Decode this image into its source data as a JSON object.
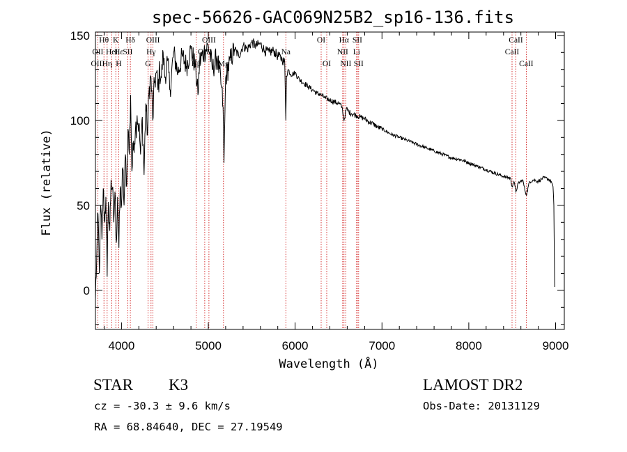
{
  "chart_data": {
    "type": "line",
    "title": "spec-56626-GAC069N25B2_sp16-136.fits",
    "xlabel": "Wavelength (Å)",
    "ylabel": "Flux (relative)",
    "xlim": [
      3700,
      9100
    ],
    "ylim": [
      -23,
      152
    ],
    "xticks": [
      4000,
      5000,
      6000,
      7000,
      8000,
      9000
    ],
    "yticks": [
      0,
      50,
      100,
      150
    ],
    "xtick_labels": [
      "4000",
      "5000",
      "6000",
      "7000",
      "8000",
      "9000"
    ],
    "ytick_labels": [
      "0",
      "50",
      "100",
      "150"
    ],
    "series": [
      {
        "name": "spectrum",
        "x": [
          3700,
          3715,
          3730,
          3745,
          3760,
          3775,
          3790,
          3805,
          3820,
          3835,
          3850,
          3865,
          3880,
          3895,
          3910,
          3925,
          3940,
          3955,
          3970,
          3985,
          4000,
          4015,
          4030,
          4045,
          4060,
          4075,
          4090,
          4105,
          4120,
          4140,
          4160,
          4180,
          4200,
          4220,
          4240,
          4260,
          4280,
          4300,
          4320,
          4340,
          4360,
          4380,
          4400,
          4420,
          4440,
          4460,
          4480,
          4500,
          4530,
          4560,
          4600,
          4650,
          4700,
          4750,
          4800,
          4850,
          4880,
          4900,
          4950,
          5000,
          5050,
          5100,
          5150,
          5170,
          5180,
          5190,
          5200,
          5250,
          5300,
          5350,
          5400,
          5450,
          5500,
          5550,
          5600,
          5650,
          5700,
          5750,
          5800,
          5850,
          5880,
          5893,
          5900,
          5920,
          5950,
          6000,
          6050,
          6100,
          6150,
          6200,
          6250,
          6300,
          6350,
          6400,
          6450,
          6500,
          6540,
          6563,
          6590,
          6620,
          6650,
          6700,
          6750,
          6800,
          6850,
          6900,
          6950,
          7000,
          7100,
          7200,
          7300,
          7400,
          7500,
          7600,
          7700,
          7800,
          7900,
          8000,
          8100,
          8200,
          8300,
          8400,
          8480,
          8498,
          8520,
          8542,
          8570,
          8620,
          8662,
          8700,
          8750,
          8800,
          8850,
          8900,
          8950,
          8970,
          8980,
          8985,
          8990
        ],
        "y": [
          -5,
          20,
          45,
          10,
          50,
          30,
          60,
          40,
          55,
          8,
          52,
          35,
          65,
          60,
          40,
          58,
          28,
          55,
          25,
          60,
          50,
          72,
          50,
          80,
          62,
          95,
          80,
          115,
          70,
          88,
          94,
          103,
          97,
          80,
          102,
          68,
          110,
          92,
          120,
          125,
          100,
          122,
          128,
          118,
          130,
          125,
          140,
          125,
          135,
          118,
          140,
          128,
          138,
          132,
          142,
          132,
          115,
          135,
          140,
          144,
          130,
          138,
          120,
          108,
          75,
          100,
          125,
          135,
          142,
          138,
          144,
          142,
          146,
          144,
          145,
          141,
          140,
          141,
          138,
          136,
          134,
          100,
          126,
          130,
          127,
          128,
          124,
          122,
          120,
          118,
          116,
          115,
          113,
          112,
          111,
          110,
          108,
          100,
          107,
          105,
          104,
          103,
          102,
          101,
          99,
          98,
          96,
          95,
          92,
          90,
          88,
          86,
          84,
          82,
          80,
          78,
          77,
          75,
          73,
          71,
          69,
          67,
          66,
          61,
          64,
          58,
          63,
          65,
          56,
          64,
          65,
          64,
          66,
          66,
          64,
          61,
          50,
          20,
          2
        ]
      }
    ],
    "line_annotations": [
      {
        "label": "Hθ",
        "x": 3798,
        "row": 0
      },
      {
        "label": "OII",
        "x": 3727,
        "row": 1
      },
      {
        "label": "OIII",
        "x": 3727,
        "row": 2
      },
      {
        "label": "K",
        "x": 3934,
        "row": 0
      },
      {
        "label": "Hε",
        "x": 3970,
        "row": 1
      },
      {
        "label": "HeI",
        "x": 3889,
        "row": 1
      },
      {
        "label": "SII",
        "x": 4072,
        "row": 1
      },
      {
        "label": "Hη",
        "x": 3835,
        "row": 2
      },
      {
        "label": "H",
        "x": 3968,
        "row": 2
      },
      {
        "label": "Hδ",
        "x": 4102,
        "row": 0
      },
      {
        "label": "OIII",
        "x": 4363,
        "row": 0
      },
      {
        "label": "Hγ",
        "x": 4340,
        "row": 1
      },
      {
        "label": "G",
        "x": 4305,
        "row": 2
      },
      {
        "label": "OIII",
        "x": 5007,
        "row": 0
      },
      {
        "label": "OIII",
        "x": 4959,
        "row": 1
      },
      {
        "label": "Hβ",
        "x": 4861,
        "row": 2
      },
      {
        "label": "Mg",
        "x": 5175,
        "row": 2
      },
      {
        "label": "Na",
        "x": 5893,
        "row": 1
      },
      {
        "label": "OI",
        "x": 6300,
        "row": 0
      },
      {
        "label": "OI",
        "x": 6364,
        "row": 2
      },
      {
        "label": "Hα",
        "x": 6563,
        "row": 0
      },
      {
        "label": "SII",
        "x": 6716,
        "row": 0
      },
      {
        "label": "NII",
        "x": 6548,
        "row": 1
      },
      {
        "label": "Li",
        "x": 6708,
        "row": 1
      },
      {
        "label": "NII",
        "x": 6583,
        "row": 2
      },
      {
        "label": "SII",
        "x": 6731,
        "row": 2
      },
      {
        "label": "CaII",
        "x": 8542,
        "row": 0
      },
      {
        "label": "CaII",
        "x": 8498,
        "row": 1
      },
      {
        "label": "CaII",
        "x": 8662,
        "row": 2
      }
    ],
    "line_positions": [
      3727,
      3798,
      3835,
      3889,
      3934,
      3968,
      4072,
      4102,
      4305,
      4340,
      4363,
      4861,
      4959,
      5007,
      5175,
      5893,
      6300,
      6364,
      6548,
      6563,
      6583,
      6708,
      6716,
      6731,
      8498,
      8542,
      8662
    ],
    "line_color": "#000000",
    "marker_line_color": "#cc0000"
  },
  "info": {
    "object_class": "STAR",
    "subclass": "K3",
    "survey": "LAMOST DR2",
    "redshift": "cz = -30.3 ± 9.6 km/s",
    "obs_date": "Obs-Date: 20131129",
    "coords": "RA =  68.84640, DEC =  27.19549"
  }
}
